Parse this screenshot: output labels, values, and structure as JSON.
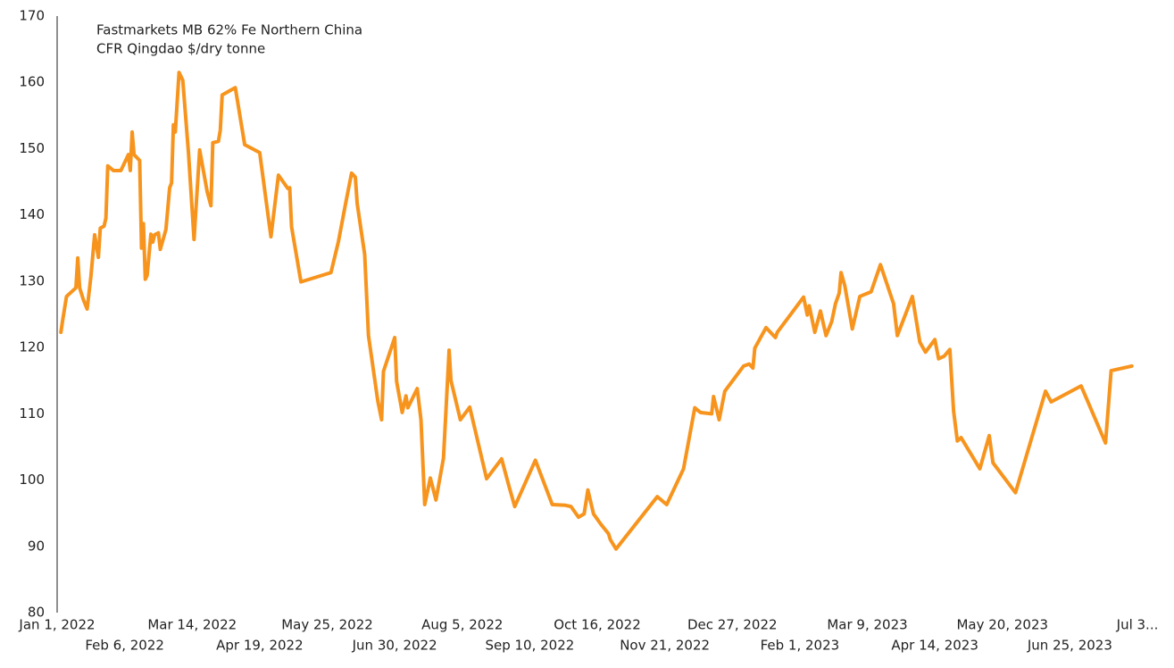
{
  "chart_data": {
    "type": "line",
    "title": [
      "Fastmarkets MB 62% Fe Northern China",
      "CFR Qingdao $/dry tonne"
    ],
    "xlim": [
      "2022-01-01",
      "2023-07-31"
    ],
    "xticks": [
      {
        "value": "2022-01-01",
        "label": "Jan 1, 2022"
      },
      {
        "value": "2022-02-06",
        "label": "Feb 6, 2022"
      },
      {
        "value": "2022-03-14",
        "label": "Mar 14, 2022"
      },
      {
        "value": "2022-04-19",
        "label": "Apr 19, 2022"
      },
      {
        "value": "2022-05-25",
        "label": "May 25, 2022"
      },
      {
        "value": "2022-06-30",
        "label": "Jun 30, 2022"
      },
      {
        "value": "2022-08-05",
        "label": "Aug 5, 2022"
      },
      {
        "value": "2022-09-10",
        "label": "Sep 10, 2022"
      },
      {
        "value": "2022-10-16",
        "label": "Oct 16, 2022"
      },
      {
        "value": "2022-11-21",
        "label": "Nov 21, 2022"
      },
      {
        "value": "2022-12-27",
        "label": "Dec 27, 2022"
      },
      {
        "value": "2023-02-01",
        "label": "Feb 1, 2023"
      },
      {
        "value": "2023-03-09",
        "label": "Mar 9, 2023"
      },
      {
        "value": "2023-04-14",
        "label": "Apr 14, 2023"
      },
      {
        "value": "2023-05-20",
        "label": "May 20, 2023"
      },
      {
        "value": "2023-06-25",
        "label": "Jun 25, 2023"
      },
      {
        "value": "2023-07-31",
        "label": "Jul 3..."
      }
    ],
    "ylim": [
      80,
      170
    ],
    "yticks": [
      80,
      90,
      100,
      110,
      120,
      130,
      140,
      150,
      160,
      170
    ],
    "grid": false,
    "x": [
      "2022-01-03",
      "2022-01-04",
      "2022-01-06",
      "2022-01-11",
      "2022-01-12",
      "2022-01-13",
      "2022-01-15",
      "2022-01-17",
      "2022-01-19",
      "2022-01-21",
      "2022-01-23",
      "2022-01-24",
      "2022-01-26",
      "2022-01-27",
      "2022-01-28",
      "2022-01-31",
      "2022-02-04",
      "2022-02-08",
      "2022-02-09",
      "2022-02-10",
      "2022-02-11",
      "2022-02-14",
      "2022-02-15",
      "2022-02-16",
      "2022-02-17",
      "2022-02-18",
      "2022-02-20",
      "2022-02-21",
      "2022-02-22",
      "2022-02-24",
      "2022-02-25",
      "2022-02-28",
      "2022-03-02",
      "2022-03-03",
      "2022-03-04",
      "2022-03-05",
      "2022-03-07",
      "2022-03-09",
      "2022-03-10",
      "2022-03-12",
      "2022-03-15",
      "2022-03-18",
      "2022-03-22",
      "2022-03-24",
      "2022-03-25",
      "2022-03-28",
      "2022-03-29",
      "2022-03-30",
      "2022-04-06",
      "2022-04-11",
      "2022-04-19",
      "2022-04-25",
      "2022-04-29",
      "2022-05-04",
      "2022-05-05",
      "2022-05-06",
      "2022-05-11",
      "2022-05-27",
      "2022-05-31",
      "2022-06-04",
      "2022-06-07",
      "2022-06-09",
      "2022-06-10",
      "2022-06-14",
      "2022-06-16",
      "2022-06-21",
      "2022-06-23",
      "2022-06-24",
      "2022-06-30",
      "2022-07-01",
      "2022-07-04",
      "2022-07-06",
      "2022-07-07",
      "2022-07-12",
      "2022-07-14",
      "2022-07-16",
      "2022-07-19",
      "2022-07-22",
      "2022-07-26",
      "2022-07-29",
      "2022-07-30",
      "2022-08-04",
      "2022-08-09",
      "2022-08-18",
      "2022-08-26",
      "2022-08-30",
      "2022-09-02",
      "2022-09-13",
      "2022-09-22",
      "2022-09-29",
      "2022-10-02",
      "2022-10-06",
      "2022-10-09",
      "2022-10-11",
      "2022-10-14",
      "2022-10-18",
      "2022-10-22",
      "2022-10-23",
      "2022-10-26",
      "2022-11-17",
      "2022-11-22",
      "2022-12-01",
      "2022-12-07",
      "2022-12-10",
      "2022-12-16",
      "2022-12-17",
      "2022-12-20",
      "2022-12-23",
      "2023-01-02",
      "2023-01-05",
      "2023-01-07",
      "2023-01-08",
      "2023-01-14",
      "2023-01-19",
      "2023-01-20",
      "2023-02-03",
      "2023-02-05",
      "2023-02-06",
      "2023-02-09",
      "2023-02-12",
      "2023-02-15",
      "2023-02-18",
      "2023-02-20",
      "2023-02-22",
      "2023-02-23",
      "2023-02-25",
      "2023-03-01",
      "2023-03-05",
      "2023-03-11",
      "2023-03-16",
      "2023-03-23",
      "2023-03-25",
      "2023-04-02",
      "2023-04-06",
      "2023-04-09",
      "2023-04-14",
      "2023-04-16",
      "2023-04-19",
      "2023-04-22",
      "2023-04-24",
      "2023-04-26",
      "2023-04-28",
      "2023-05-08",
      "2023-05-13",
      "2023-05-15",
      "2023-05-27",
      "2023-06-12",
      "2023-06-15",
      "2023-07-01",
      "2023-07-14",
      "2023-07-17",
      "2023-07-28"
    ],
    "series": [
      {
        "color": "#f7941d",
        "values": [
          122.3,
          124.2,
          127.7,
          129.0,
          133.5,
          129.0,
          127.2,
          125.8,
          130.7,
          137.0,
          133.6,
          138.0,
          138.3,
          139.5,
          147.4,
          146.7,
          146.7,
          149.1,
          146.7,
          152.5,
          149.1,
          148.2,
          135.0,
          138.7,
          130.3,
          130.9,
          137.1,
          135.9,
          137.0,
          137.3,
          134.8,
          137.8,
          144.1,
          144.8,
          153.6,
          152.5,
          161.5,
          160.3,
          156.7,
          149.5,
          136.3,
          149.8,
          143.5,
          141.4,
          150.9,
          151.1,
          152.8,
          158.1,
          159.2,
          150.6,
          149.4,
          136.7,
          146.0,
          144.0,
          144.1,
          138.2,
          129.9,
          131.3,
          136.0,
          142.0,
          146.3,
          145.7,
          141.7,
          134.0,
          121.8,
          111.9,
          109.1,
          116.4,
          121.5,
          114.9,
          110.2,
          112.7,
          110.9,
          113.8,
          109.1,
          96.3,
          100.3,
          97.0,
          103.3,
          119.6,
          115.0,
          109.1,
          111.0,
          100.2,
          103.2,
          99.0,
          96.0,
          103.0,
          96.3,
          96.2,
          96.0,
          94.4,
          94.9,
          98.5,
          94.9,
          93.3,
          91.9,
          91.0,
          89.6,
          97.5,
          96.3,
          101.7,
          110.9,
          110.2,
          110.0,
          112.6,
          109.1,
          113.4,
          117.2,
          117.5,
          116.9,
          119.9,
          123.0,
          121.5,
          122.3,
          127.6,
          124.9,
          126.3,
          122.3,
          125.5,
          121.8,
          123.9,
          126.6,
          128.2,
          131.3,
          129.3,
          122.8,
          127.7,
          128.4,
          132.5,
          126.6,
          121.8,
          127.7,
          120.8,
          119.3,
          121.2,
          118.3,
          118.7,
          119.7,
          110.4,
          105.9,
          106.4,
          101.7,
          106.7,
          102.6,
          98.1,
          113.4,
          111.8,
          114.2,
          105.6,
          116.5,
          117.2
        ]
      }
    ]
  }
}
